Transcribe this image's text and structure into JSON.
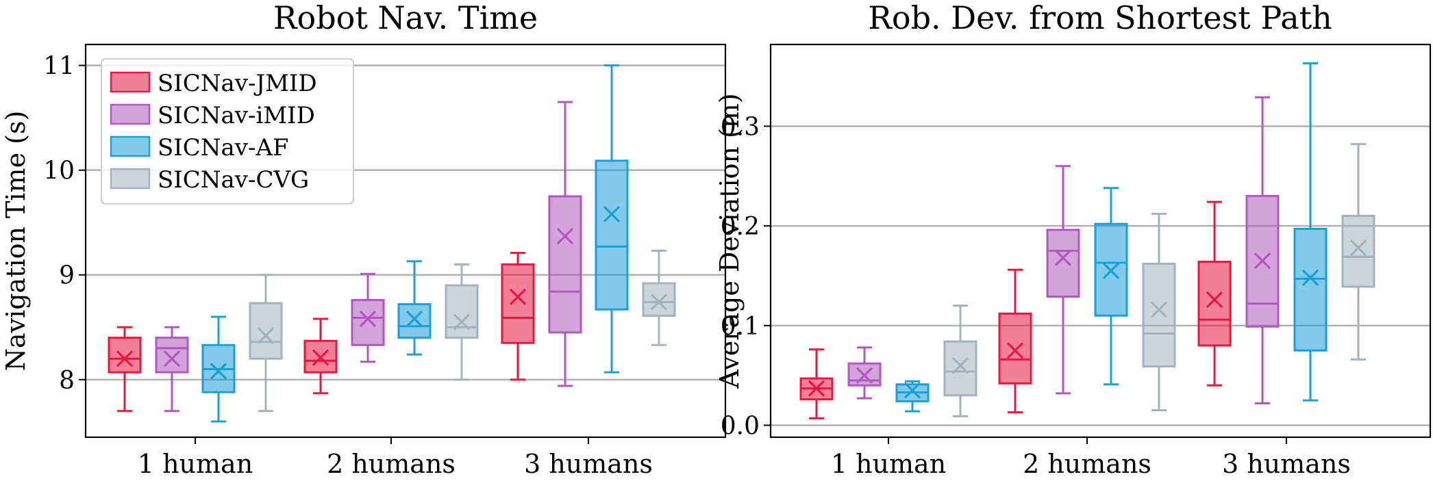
{
  "chart_data": [
    {
      "type": "box",
      "title": "Robot Nav. Time",
      "xlabel": "",
      "ylabel": "Navigation Time (s)",
      "categories": [
        "1 human",
        "2 humans",
        "3 humans"
      ],
      "ylim": [
        7.45,
        11.2
      ],
      "yticks": [
        8,
        9,
        10,
        11
      ],
      "grid": "horizontal",
      "legend_position": "top-left",
      "series": [
        {
          "name": "SICNav-JMID",
          "color": "#e8173f",
          "boxes": [
            {
              "whisker_low": 7.7,
              "q1": 8.07,
              "median": 8.2,
              "q3": 8.4,
              "whisker_high": 8.5,
              "mean": 8.2
            },
            {
              "whisker_low": 7.87,
              "q1": 8.07,
              "median": 8.18,
              "q3": 8.37,
              "whisker_high": 8.58,
              "mean": 8.21
            },
            {
              "whisker_low": 8.0,
              "q1": 8.35,
              "median": 8.59,
              "q3": 9.1,
              "whisker_high": 9.21,
              "mean": 8.79
            }
          ]
        },
        {
          "name": "SICNav-iMID",
          "color": "#b058bf",
          "boxes": [
            {
              "whisker_low": 7.7,
              "q1": 8.07,
              "median": 8.3,
              "q3": 8.4,
              "whisker_high": 8.5,
              "mean": 8.2
            },
            {
              "whisker_low": 8.17,
              "q1": 8.33,
              "median": 8.59,
              "q3": 8.76,
              "whisker_high": 9.01,
              "mean": 8.58
            },
            {
              "whisker_low": 7.94,
              "q1": 8.45,
              "median": 8.84,
              "q3": 9.75,
              "whisker_high": 10.65,
              "mean": 9.37
            }
          ]
        },
        {
          "name": "SICNav-AF",
          "color": "#1b9fd9",
          "boxes": [
            {
              "whisker_low": 7.6,
              "q1": 7.88,
              "median": 8.1,
              "q3": 8.33,
              "whisker_high": 8.6,
              "mean": 8.08
            },
            {
              "whisker_low": 8.24,
              "q1": 8.4,
              "median": 8.51,
              "q3": 8.72,
              "whisker_high": 9.13,
              "mean": 8.58
            },
            {
              "whisker_low": 8.07,
              "q1": 8.67,
              "median": 9.27,
              "q3": 10.09,
              "whisker_high": 11.0,
              "mean": 9.58
            }
          ]
        },
        {
          "name": "SICNav-CVG",
          "color": "#a3b2bc",
          "boxes": [
            {
              "whisker_low": 7.7,
              "q1": 8.2,
              "median": 8.36,
              "q3": 8.73,
              "whisker_high": 9.0,
              "mean": 8.42
            },
            {
              "whisker_low": 8.0,
              "q1": 8.4,
              "median": 8.5,
              "q3": 8.9,
              "whisker_high": 9.1,
              "mean": 8.55
            },
            {
              "whisker_low": 8.33,
              "q1": 8.61,
              "median": 8.74,
              "q3": 8.92,
              "whisker_high": 9.23,
              "mean": 8.74
            }
          ]
        }
      ]
    },
    {
      "type": "box",
      "title": "Rob. Dev. from Shortest Path",
      "xlabel": "",
      "ylabel": "Average Deviation (m)",
      "categories": [
        "1 human",
        "2 humans",
        "3 humans"
      ],
      "ylim": [
        -0.012,
        0.382
      ],
      "yticks": [
        "0.0",
        "0.1",
        "0.2",
        "0.3"
      ],
      "grid": "horizontal",
      "series": [
        {
          "name": "SICNav-JMID",
          "color": "#e8173f",
          "boxes": [
            {
              "whisker_low": 0.007,
              "q1": 0.026,
              "median": 0.037,
              "q3": 0.047,
              "whisker_high": 0.076,
              "mean": 0.037
            },
            {
              "whisker_low": 0.013,
              "q1": 0.042,
              "median": 0.066,
              "q3": 0.112,
              "whisker_high": 0.156,
              "mean": 0.075
            },
            {
              "whisker_low": 0.04,
              "q1": 0.08,
              "median": 0.106,
              "q3": 0.164,
              "whisker_high": 0.224,
              "mean": 0.126
            }
          ]
        },
        {
          "name": "SICNav-iMID",
          "color": "#b058bf",
          "boxes": [
            {
              "whisker_low": 0.027,
              "q1": 0.04,
              "median": 0.045,
              "q3": 0.062,
              "whisker_high": 0.078,
              "mean": 0.05
            },
            {
              "whisker_low": 0.032,
              "q1": 0.129,
              "median": 0.175,
              "q3": 0.196,
              "whisker_high": 0.26,
              "mean": 0.168
            },
            {
              "whisker_low": 0.022,
              "q1": 0.099,
              "median": 0.122,
              "q3": 0.23,
              "whisker_high": 0.329,
              "mean": 0.165
            }
          ]
        },
        {
          "name": "SICNav-AF",
          "color": "#1b9fd9",
          "boxes": [
            {
              "whisker_low": 0.014,
              "q1": 0.024,
              "median": 0.033,
              "q3": 0.041,
              "whisker_high": 0.044,
              "mean": 0.035
            },
            {
              "whisker_low": 0.041,
              "q1": 0.11,
              "median": 0.163,
              "q3": 0.202,
              "whisker_high": 0.238,
              "mean": 0.155
            },
            {
              "whisker_low": 0.025,
              "q1": 0.075,
              "median": 0.147,
              "q3": 0.197,
              "whisker_high": 0.363,
              "mean": 0.148
            }
          ]
        },
        {
          "name": "SICNav-CVG",
          "color": "#a3b2bc",
          "boxes": [
            {
              "whisker_low": 0.009,
              "q1": 0.03,
              "median": 0.054,
              "q3": 0.084,
              "whisker_high": 0.12,
              "mean": 0.06
            },
            {
              "whisker_low": 0.015,
              "q1": 0.059,
              "median": 0.092,
              "q3": 0.162,
              "whisker_high": 0.212,
              "mean": 0.116
            },
            {
              "whisker_low": 0.066,
              "q1": 0.139,
              "median": 0.169,
              "q3": 0.21,
              "whisker_high": 0.282,
              "mean": 0.178
            }
          ]
        }
      ]
    }
  ]
}
